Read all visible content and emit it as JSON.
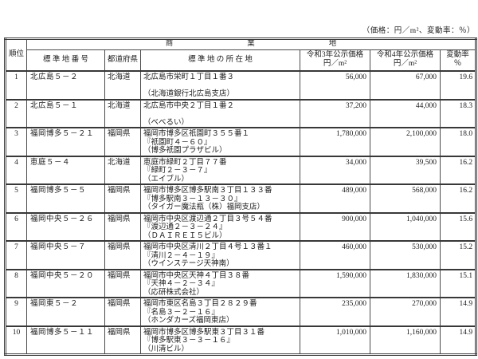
{
  "page": {
    "unit_note": "（価格：円／m²、変動率：％）"
  },
  "table": {
    "group_header": {
      "c1": "商",
      "c2": "業",
      "c3": "地"
    },
    "columns": {
      "rank": "順位",
      "number": "標 準 地 番 号",
      "prefecture": "都道府県",
      "location": "標 準 地 の 所 在 地",
      "price_r3_line1": "令和3年公示価格",
      "price_r3_line2": "円／m²",
      "price_r4_line1": "令和4年公示価格",
      "price_r4_line2": "円／m²",
      "rate_line1": "変動率",
      "rate_line2": "％"
    },
    "rows": [
      {
        "rank": "1",
        "number": "北広島５－２",
        "prefecture": "北海道",
        "address": [
          "北広島市栄町１丁目１番３",
          "",
          "（北海道銀行北広島支店）"
        ],
        "price_r3": "56,000",
        "price_r4": "67,000",
        "rate": "19.6"
      },
      {
        "rank": "2",
        "number": "北広島５－１",
        "prefecture": "北海道",
        "address": [
          "北広島市中央２丁目１番２",
          "",
          "（べべるい）"
        ],
        "price_r3": "37,200",
        "price_r4": "44,000",
        "rate": "18.3"
      },
      {
        "rank": "3",
        "number": "福岡博多５－２１",
        "prefecture": "福岡県",
        "address": [
          "福岡市博多区祇園町３５５番１",
          "『祇園町４－６０』",
          "（博多祇園プラザビル）"
        ],
        "price_r3": "1,780,000",
        "price_r4": "2,100,000",
        "rate": "18.0"
      },
      {
        "rank": "4",
        "number": "恵庭５－４",
        "prefecture": "北海道",
        "address": [
          "恵庭市緑町２丁目７７番",
          "『緑町２－３－７』",
          "（エイブル）"
        ],
        "price_r3": "34,000",
        "price_r4": "39,500",
        "rate": "16.2"
      },
      {
        "rank": "5",
        "number": "福岡博多５－５",
        "prefecture": "福岡県",
        "address": [
          "福岡市博多区博多駅南３丁目１３３番",
          "『博多駅南３－１３－３０』",
          "（タイガー魔法瓶（株）福岡支店）"
        ],
        "price_r3": "489,000",
        "price_r4": "568,000",
        "rate": "16.2"
      },
      {
        "rank": "6",
        "number": "福岡中央５－２６",
        "prefecture": "福岡県",
        "address": [
          "福岡市中央区渡辺通２丁目３号５４番",
          "『渡辺通２－３－２４』",
          "（ＤＡＩＲＥＩ５ビル）"
        ],
        "price_r3": "900,000",
        "price_r4": "1,040,000",
        "rate": "15.6"
      },
      {
        "rank": "7",
        "number": "福岡中央５－７",
        "prefecture": "福岡県",
        "address": [
          "福岡市中央区清川２丁目４号１３番１",
          "『清川２－４－１９』",
          "（ウインステージ天神南）"
        ],
        "price_r3": "460,000",
        "price_r4": "530,000",
        "rate": "15.2"
      },
      {
        "rank": "8",
        "number": "福岡中央５－２０",
        "prefecture": "福岡県",
        "address": [
          "福岡市中央区天神４丁目３８番",
          "『天神４－２－３４』",
          "（応研株式会社）"
        ],
        "price_r3": "1,590,000",
        "price_r4": "1,830,000",
        "rate": "15.1"
      },
      {
        "rank": "9",
        "number": "福岡東５－２",
        "prefecture": "福岡県",
        "address": [
          "福岡市東区名島３丁目２８２９番",
          "『名島３－２－１６』",
          "（ホンダカーズ福岡東店）"
        ],
        "price_r3": "235,000",
        "price_r4": "270,000",
        "rate": "14.9"
      },
      {
        "rank": "10",
        "number": "福岡博多５－１１",
        "prefecture": "福岡県",
        "address": [
          "福岡市博多区博多駅東３丁目３１番",
          "『博多駅東３－３－１６』",
          "（川清ビル）"
        ],
        "price_r3": "1,010,000",
        "price_r4": "1,160,000",
        "rate": "14.9"
      }
    ]
  }
}
